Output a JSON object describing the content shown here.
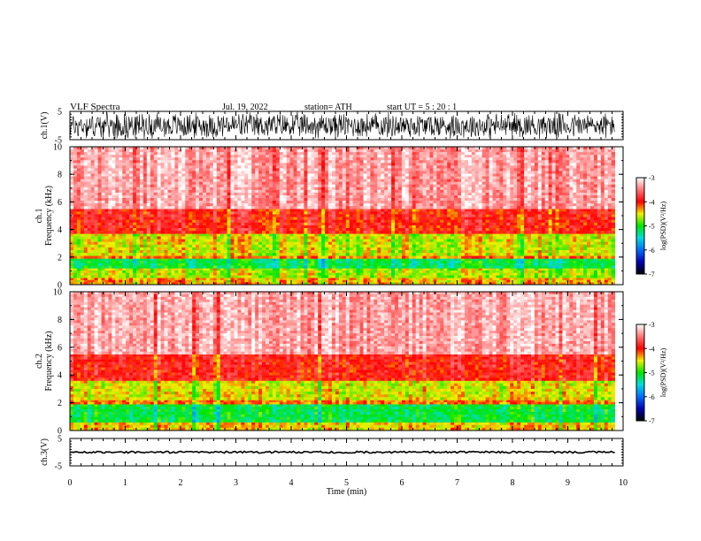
{
  "header": {
    "title": "VLF  Spectra",
    "date": "Jul.  19,  2022",
    "station": "station= ATH",
    "start": "start  UT  =    5  : 20 : 1"
  },
  "chart_data": [
    {
      "type": "line",
      "title": "",
      "ylabel": "ch.1(V)",
      "ylim": [
        -5,
        5
      ],
      "yticks": [
        "5",
        "-5"
      ],
      "xlim": [
        0,
        10
      ],
      "series_color": "#000000",
      "amplitude_description": "dense broadband noise filling nearly full range"
    },
    {
      "type": "heatmap",
      "ylabel_lines": [
        "ch.1",
        "Frequency  (kHz)"
      ],
      "ylim": [
        0,
        10
      ],
      "yticks": [
        "0",
        "2",
        "4",
        "6",
        "8",
        "10"
      ],
      "xlim": [
        0,
        9.85
      ],
      "colorbar": {
        "label": "log(PSD)(V²/Hz)",
        "ticks": [
          "-3",
          "-4",
          "-5",
          "-6",
          "-7"
        ],
        "range": [
          -7,
          -3
        ]
      },
      "bands_khz": [
        {
          "from": 0.0,
          "to": 0.5,
          "level": -4.3
        },
        {
          "from": 0.5,
          "to": 1.2,
          "level": -4.6
        },
        {
          "from": 1.2,
          "to": 1.9,
          "level": -5.1
        },
        {
          "from": 1.9,
          "to": 2.1,
          "level": -4.2
        },
        {
          "from": 2.1,
          "to": 3.7,
          "level": -4.5
        },
        {
          "from": 3.7,
          "to": 5.5,
          "level": -3.9
        },
        {
          "from": 5.5,
          "to": 10.0,
          "level": -3.3
        }
      ]
    },
    {
      "type": "heatmap",
      "ylabel_lines": [
        "ch.2",
        "Frequency  (kHz)"
      ],
      "ylim": [
        0,
        10
      ],
      "yticks": [
        "0",
        "2",
        "4",
        "6",
        "8",
        "10"
      ],
      "xlim": [
        0,
        9.85
      ],
      "colorbar": {
        "label": "log(PSD)(V²/Hz)",
        "ticks": [
          "-3",
          "-4",
          "-5",
          "-6",
          "-7"
        ],
        "range": [
          -7,
          -3
        ]
      },
      "bands_khz": [
        {
          "from": 0.0,
          "to": 0.6,
          "level": -4.4
        },
        {
          "from": 0.6,
          "to": 1.9,
          "level": -5.1
        },
        {
          "from": 1.9,
          "to": 2.2,
          "level": -4.2
        },
        {
          "from": 2.2,
          "to": 3.6,
          "level": -4.5
        },
        {
          "from": 3.6,
          "to": 5.5,
          "level": -3.9
        },
        {
          "from": 5.5,
          "to": 10.0,
          "level": -3.3
        }
      ]
    },
    {
      "type": "line",
      "ylabel": "ch.3(V)",
      "ylim": [
        -5,
        5
      ],
      "yticks": [
        "5",
        "-5"
      ],
      "xlim": [
        0,
        10
      ],
      "xlabel": "Time  (min)",
      "xticks": [
        "0",
        "1",
        "2",
        "3",
        "4",
        "5",
        "6",
        "7",
        "8",
        "9",
        "10"
      ],
      "baseline": 0,
      "series_color": "#000000"
    }
  ]
}
